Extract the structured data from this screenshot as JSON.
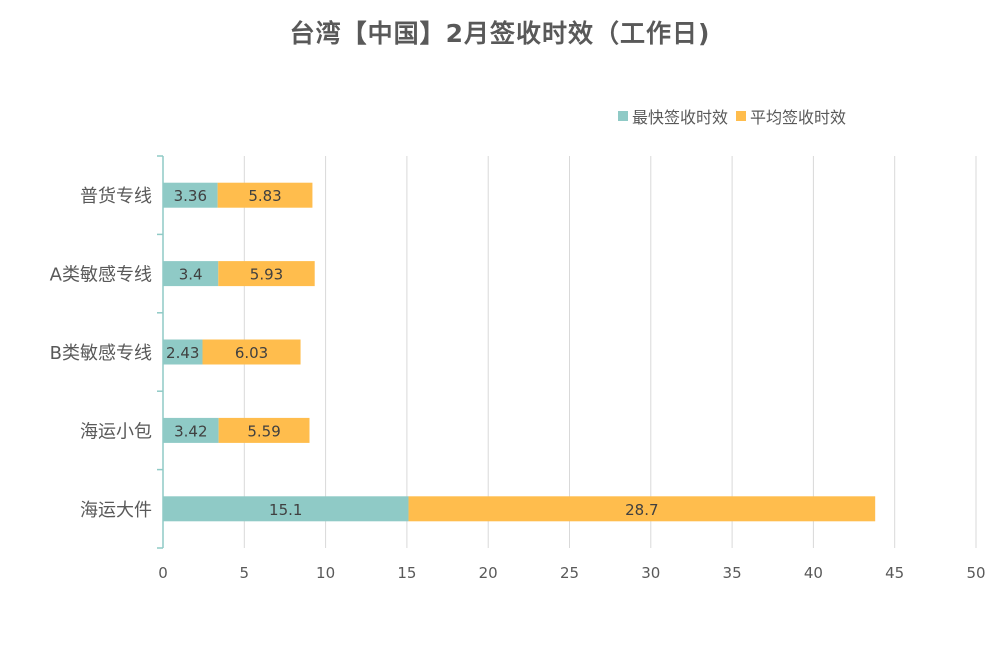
{
  "chart_data": {
    "type": "bar",
    "orientation": "horizontal",
    "stacked": true,
    "title": "台湾【中国】2月签收时效（工作日)",
    "categories": [
      "普货专线",
      "A类敏感专线",
      "B类敏感专线",
      "海运小包",
      "海运大件"
    ],
    "series": [
      {
        "name": "最快签收时效",
        "values": [
          3.36,
          3.4,
          2.43,
          3.42,
          15.1
        ],
        "color": "#8FCAC6"
      },
      {
        "name": "平均签收时效",
        "values": [
          5.83,
          5.93,
          6.03,
          5.59,
          28.7
        ],
        "color": "#FFBD4D"
      }
    ],
    "xlim": [
      0,
      50
    ],
    "xticks": [
      0,
      5,
      10,
      15,
      20,
      25,
      30,
      35,
      40,
      45,
      50
    ],
    "grid": true,
    "legend_position": "top-right",
    "colors": {
      "axis": "#8FCAC6",
      "grid": "#D9D9D9",
      "text": "#595959"
    }
  }
}
